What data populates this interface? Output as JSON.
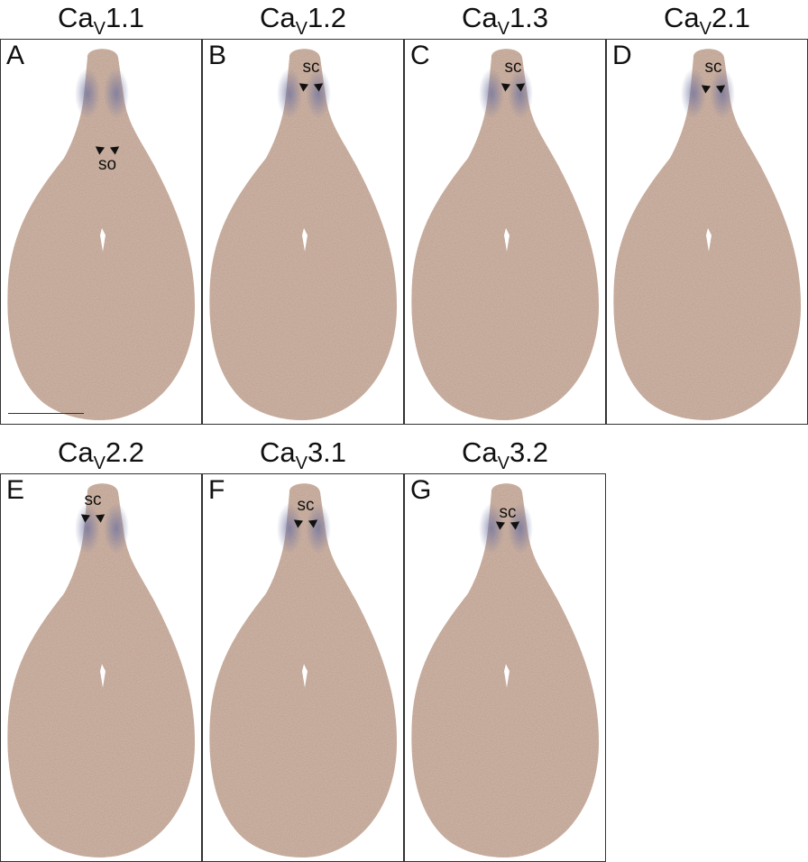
{
  "figure": {
    "panels": [
      {
        "letter": "A",
        "title_prefix": "Ca",
        "title_sub": "V",
        "title_suffix": "1.1",
        "annotation": "so"
      },
      {
        "letter": "B",
        "title_prefix": "Ca",
        "title_sub": "V",
        "title_suffix": "1.2",
        "annotation": "sc"
      },
      {
        "letter": "C",
        "title_prefix": "Ca",
        "title_sub": "V",
        "title_suffix": "1.3",
        "annotation": "sc"
      },
      {
        "letter": "D",
        "title_prefix": "Ca",
        "title_sub": "V",
        "title_suffix": "2.1",
        "annotation": "sc"
      },
      {
        "letter": "E",
        "title_prefix": "Ca",
        "title_sub": "V",
        "title_suffix": "2.2",
        "annotation": "sc"
      },
      {
        "letter": "F",
        "title_prefix": "Ca",
        "title_sub": "V",
        "title_suffix": "3.1",
        "annotation": "sc"
      },
      {
        "letter": "G",
        "title_prefix": "Ca",
        "title_sub": "V",
        "title_suffix": "3.2",
        "annotation": "sc"
      }
    ],
    "colors": {
      "tissue": "#c9ab9a",
      "stain": "#7f83a8",
      "border": "#333333"
    }
  }
}
